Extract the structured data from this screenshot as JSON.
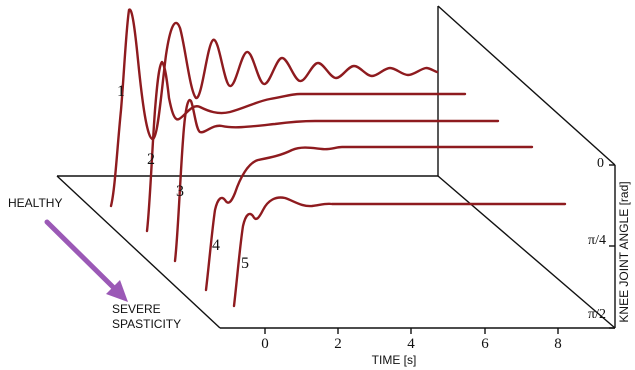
{
  "chart_data": {
    "type": "line",
    "xlabel": "TIME [s]",
    "ylabel": "KNEE JOINT ANGLE  [rad]",
    "x_ticks": [
      "0",
      "2",
      "4",
      "6",
      "8"
    ],
    "y_ticks": [
      "0",
      "π/4",
      "π/2"
    ],
    "series": [
      {
        "name": "1"
      },
      {
        "name": "2"
      },
      {
        "name": "3"
      },
      {
        "name": "4"
      },
      {
        "name": "5"
      }
    ],
    "annotations": {
      "healthy": "HEALTHY",
      "severe_line1": "SEVERE",
      "severe_line2": "SPASTICITY"
    },
    "colors": {
      "curve": "#8e1b1f",
      "arrow": "#9b59b6"
    }
  }
}
